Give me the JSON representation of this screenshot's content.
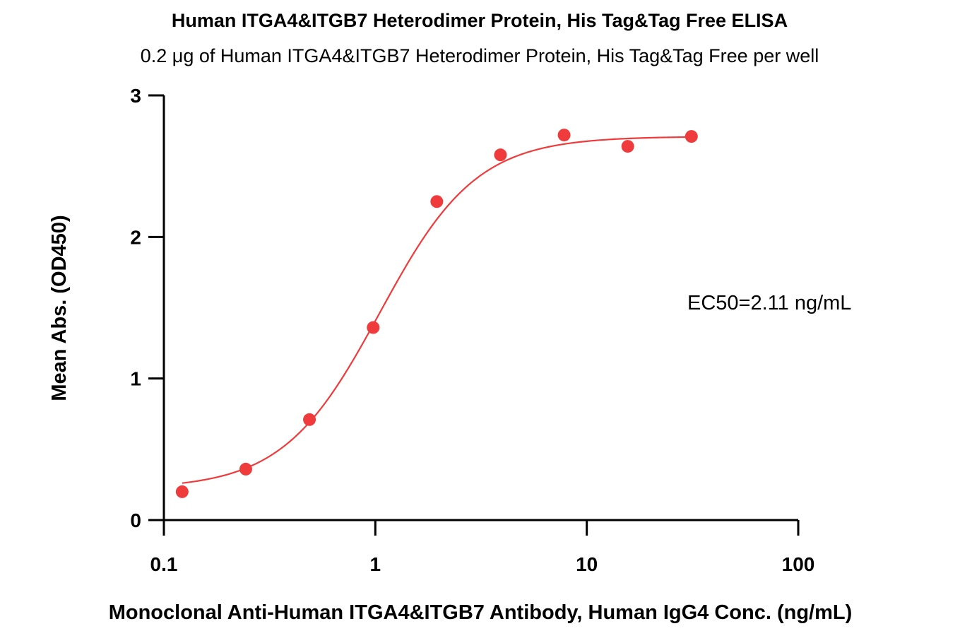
{
  "chart_data": {
    "type": "scatter",
    "title": "Human ITGA4&ITGB7 Heterodimer Protein, His Tag&Tag Free ELISA",
    "subtitle": "0.2 μg of Human ITGA4&ITGB7 Heterodimer Protein, His Tag&Tag Free per well",
    "xlabel": "Monoclonal Anti-Human ITGA4&ITGB7 Antibody, Human IgG4 Conc. (ng/mL)",
    "ylabel": "Mean Abs. (OD450)",
    "x_scale": "log",
    "xlim": [
      0.1,
      100
    ],
    "ylim": [
      0,
      3
    ],
    "x_ticks": [
      "0.1",
      "1",
      "10",
      "100"
    ],
    "y_ticks": [
      "0",
      "1",
      "2",
      "3"
    ],
    "grid": false,
    "series": [
      {
        "x": [
          0.122,
          0.244,
          0.488,
          0.977,
          1.953,
          3.906,
          7.813,
          15.625,
          31.25
        ],
        "y": [
          0.2,
          0.36,
          0.71,
          1.36,
          2.25,
          2.58,
          2.72,
          2.64,
          2.71
        ],
        "color": "#ef3b3b",
        "fit": "4PL"
      }
    ],
    "annotations": [
      "EC50=2.11  ng/mL"
    ]
  },
  "colors": {
    "series": "#ef3b3b",
    "axis": "#000000"
  }
}
